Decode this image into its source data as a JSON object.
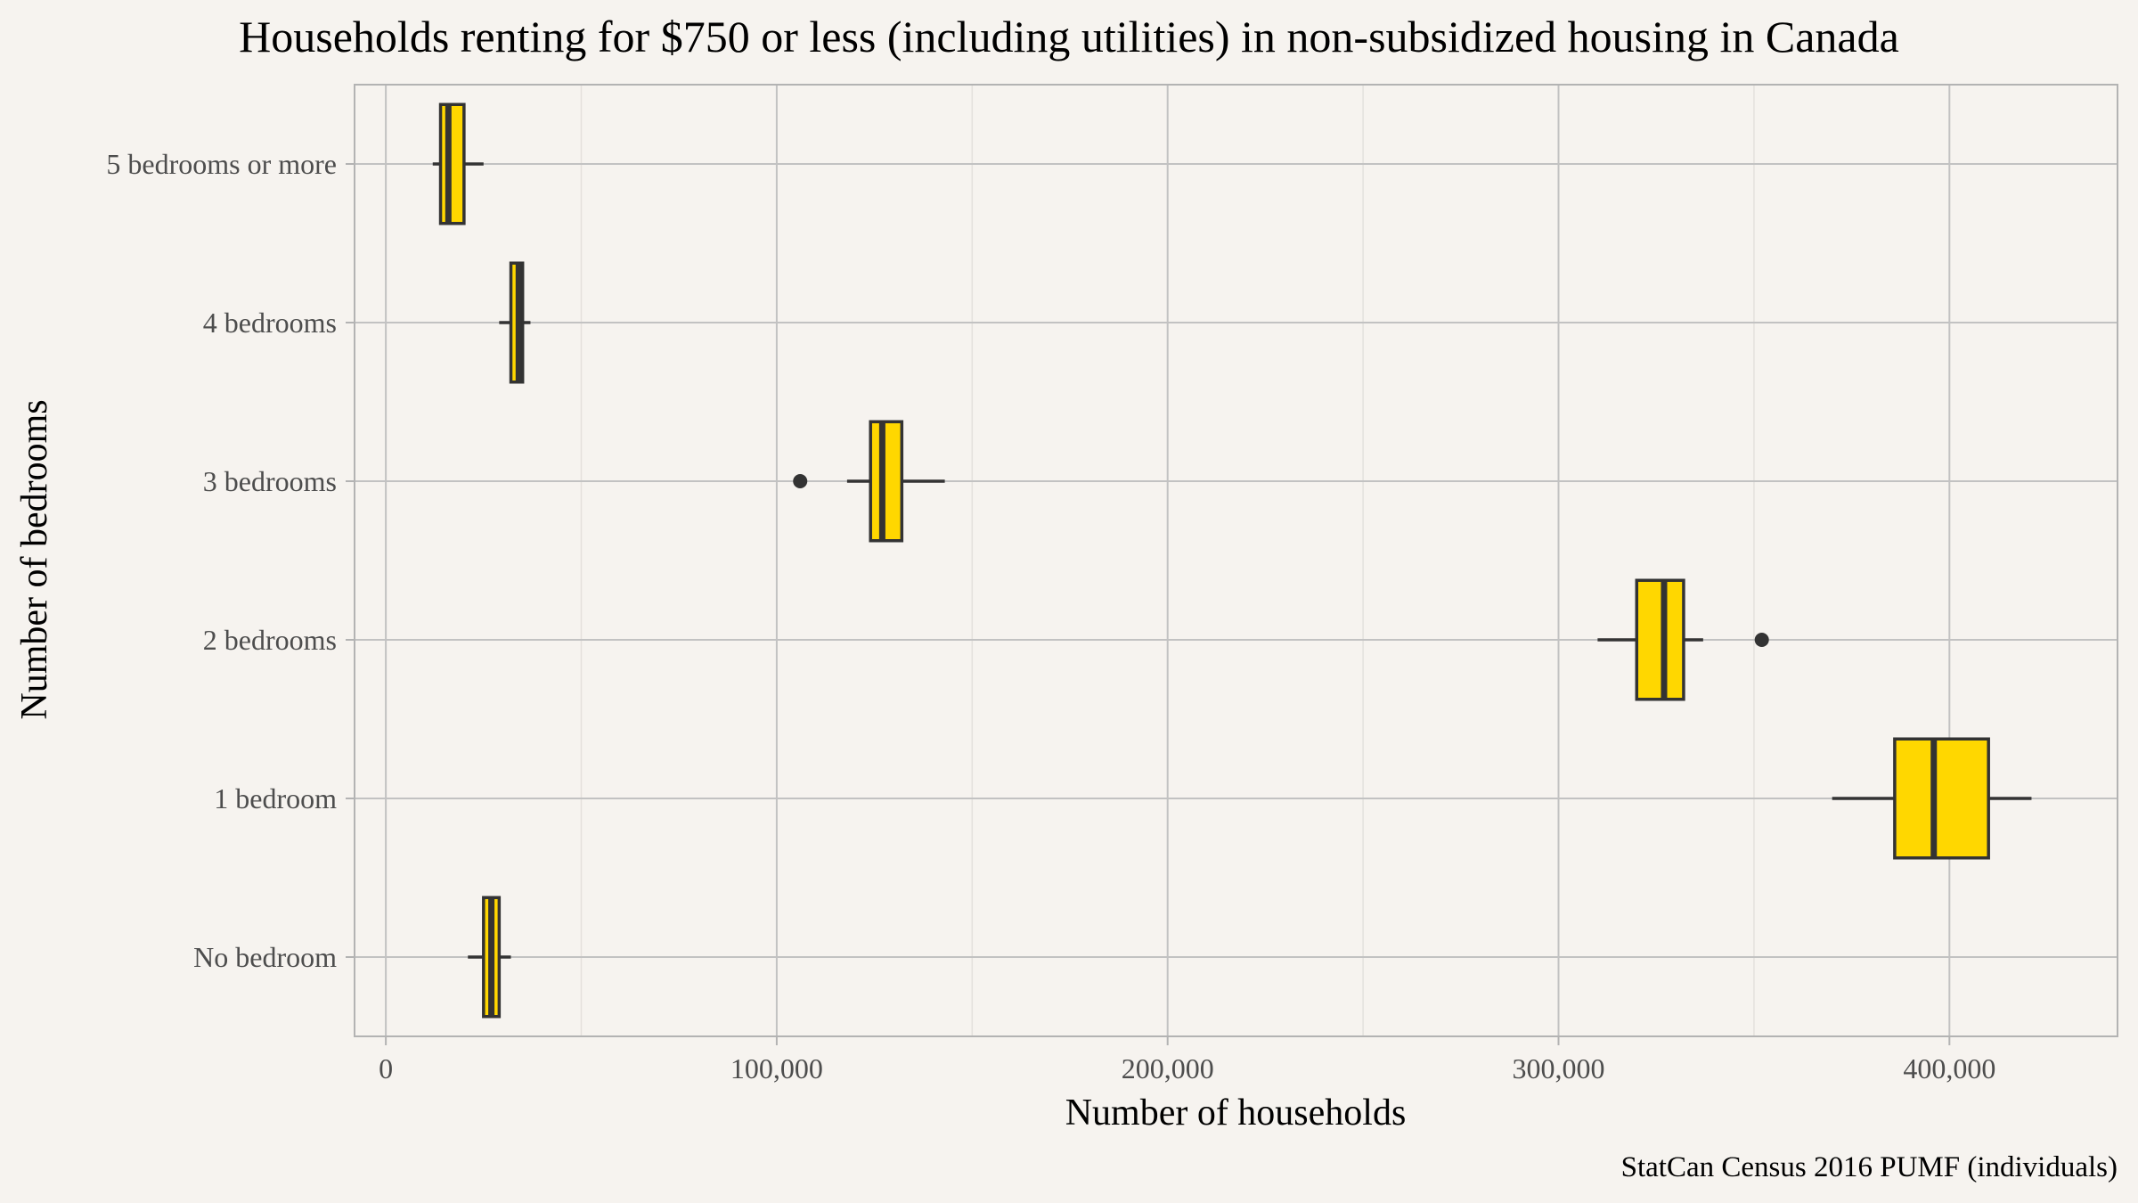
{
  "chart_data": {
    "type": "boxplot",
    "title": "Households renting for $750 or less (including utilities) in non-subsidized housing in Canada",
    "xlabel": "Number of households",
    "ylabel": "Number of bedrooms",
    "caption": "StatCan Census 2016 PUMF (individuals)",
    "xlim": [
      -8000,
      443000
    ],
    "x_ticks": [
      0,
      100000,
      200000,
      300000,
      400000
    ],
    "x_tick_labels": [
      "0",
      "100,000",
      "200,000",
      "300,000",
      "400,000"
    ],
    "categories": [
      "No bedroom",
      "1 bedroom",
      "2 bedrooms",
      "3 bedrooms",
      "4 bedrooms",
      "5 bedrooms or more"
    ],
    "grid": true,
    "fill_color": "#FFD700",
    "outline_color": "#333333",
    "boxes": [
      {
        "category": "No bedroom",
        "whisker_low": 21000,
        "q1": 25000,
        "median": 27000,
        "q3": 29000,
        "whisker_high": 32000,
        "outliers": []
      },
      {
        "category": "1 bedroom",
        "whisker_low": 370000,
        "q1": 386000,
        "median": 396000,
        "q3": 410000,
        "whisker_high": 421000,
        "outliers": []
      },
      {
        "category": "2 bedrooms",
        "whisker_low": 310000,
        "q1": 320000,
        "median": 327000,
        "q3": 332000,
        "whisker_high": 337000,
        "outliers": [
          352000
        ]
      },
      {
        "category": "3 bedrooms",
        "whisker_low": 118000,
        "q1": 124000,
        "median": 127000,
        "q3": 132000,
        "whisker_high": 143000,
        "outliers": [
          106000
        ]
      },
      {
        "category": "4 bedrooms",
        "whisker_low": 29000,
        "q1": 32000,
        "median": 34000,
        "q3": 35000,
        "whisker_high": 37000,
        "outliers": []
      },
      {
        "category": "5 bedrooms or more",
        "whisker_low": 12000,
        "q1": 14000,
        "median": 16000,
        "q3": 20000,
        "whisker_high": 25000,
        "outliers": []
      }
    ]
  }
}
